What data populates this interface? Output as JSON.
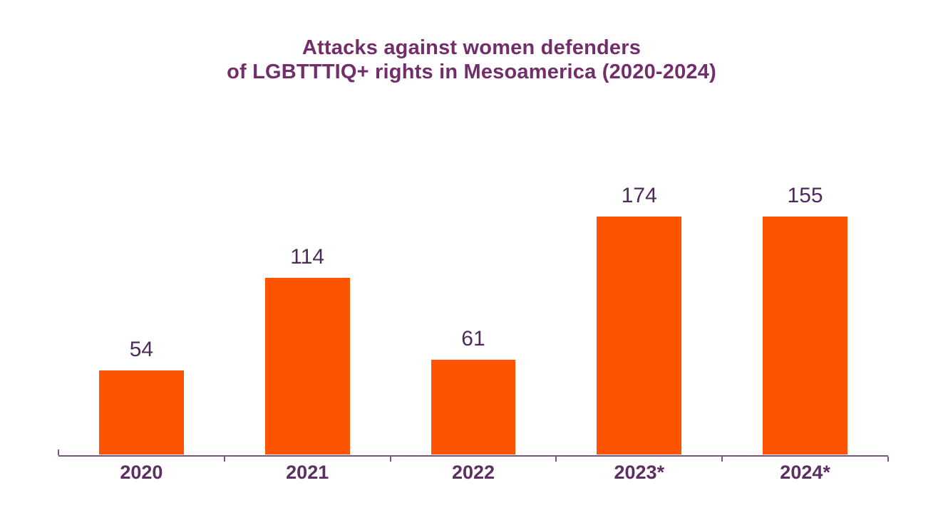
{
  "chart": {
    "title_line1": "Attacks against women defenders",
    "title_line2": "of LGBTTTIQ+ rights in Mesoamerica (2020-2024)",
    "colors": {
      "background": "#ffffff",
      "bar": "#fc5400",
      "title": "#722d6a",
      "value_label": "#4e2a5a",
      "tick_label": "#5c2f63",
      "axis": "#7c5386"
    }
  },
  "chart_data": {
    "type": "bar",
    "title": "Attacks against women defenders of LGBTTTIQ+ rights in Mesoamerica (2020-2024)",
    "categories": [
      "2020",
      "2021",
      "2022",
      "2023*",
      "2024*"
    ],
    "values": [
      54,
      114,
      61,
      174,
      155
    ],
    "data_labels": [
      54,
      114,
      61,
      174,
      155
    ],
    "xlabel": "",
    "ylabel": "",
    "ylim": [
      0,
      174
    ],
    "y_axis_visible": false,
    "grid": false,
    "legend": null,
    "bar_color": "#fc5400"
  }
}
